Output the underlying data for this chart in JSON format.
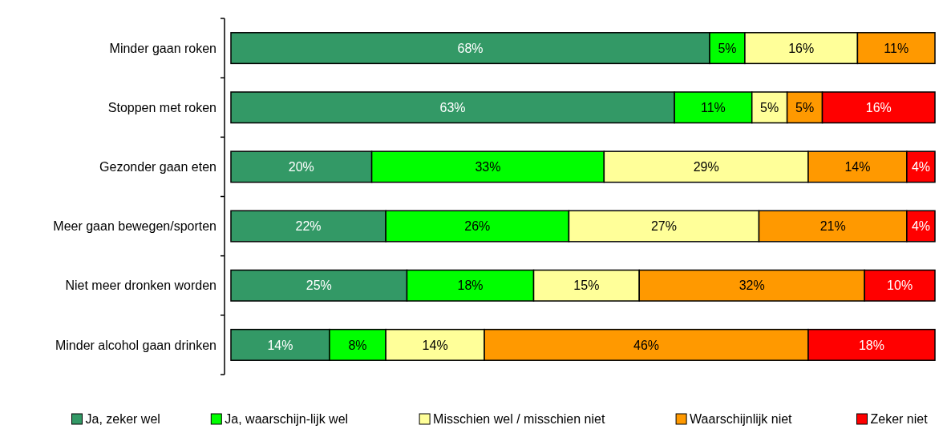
{
  "chart_data": {
    "type": "bar",
    "orientation": "horizontal",
    "stacked": true,
    "legend": "bottom",
    "categories": [
      "Minder gaan roken",
      "Stoppen met roken",
      "Gezonder gaan eten",
      "Meer gaan bewegen/sporten",
      "Niet meer dronken worden",
      "Minder alcohol gaan drinken"
    ],
    "series": [
      {
        "name": "Ja, zeker wel",
        "color": "#339966",
        "values": [
          68,
          63,
          20,
          22,
          25,
          14
        ],
        "value_labels": [
          "68%",
          "63%",
          "20%",
          "22%",
          "25%",
          "14%"
        ]
      },
      {
        "name": "Ja, waarschijn-lijk wel",
        "color": "#00ff00",
        "values": [
          5,
          11,
          33,
          26,
          18,
          8
        ],
        "value_labels": [
          "5%",
          "11%",
          "33%",
          "26%",
          "18%",
          "8%"
        ]
      },
      {
        "name": "Misschien wel / misschien niet",
        "color": "#ffff99",
        "values": [
          16,
          5,
          29,
          27,
          15,
          14
        ],
        "value_labels": [
          "16%",
          "5%",
          "29%",
          "27%",
          "15%",
          "14%"
        ]
      },
      {
        "name": "Waarschijnlijk niet",
        "color": "#ff9900",
        "values": [
          11,
          5,
          14,
          21,
          32,
          46
        ],
        "value_labels": [
          "11%",
          "5%",
          "14%",
          "21%",
          "32%",
          "46%"
        ]
      },
      {
        "name": "Zeker niet",
        "color": "#ff0000",
        "values": [
          null,
          16,
          4,
          4,
          10,
          18
        ],
        "value_labels": [
          null,
          "16%",
          "4%",
          "4%",
          "10%",
          "18%"
        ]
      }
    ]
  }
}
